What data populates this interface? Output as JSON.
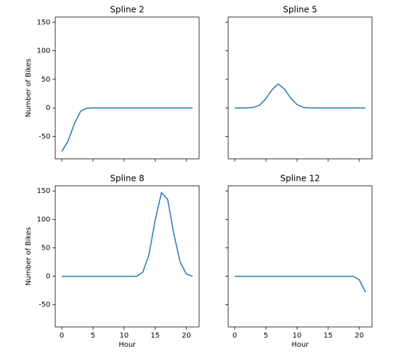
{
  "chart_data": [
    {
      "type": "line",
      "title": "Spline 2",
      "ylabel": "Number of Bikes",
      "x": [
        0,
        1,
        2,
        3,
        4,
        5,
        6,
        7,
        8,
        9,
        10,
        11,
        12,
        13,
        14,
        15,
        16,
        17,
        18,
        19,
        20,
        21
      ],
      "series": [
        {
          "color": "#1f77b4",
          "values": [
            -76,
            -58,
            -28,
            -6,
            -0.5,
            0,
            0,
            0,
            0,
            0,
            0,
            0,
            0,
            0,
            0,
            0,
            0,
            0,
            0,
            0,
            0,
            0
          ]
        }
      ],
      "xlim": [
        -1.05,
        22.05
      ],
      "ylim": [
        -89,
        159
      ],
      "xticks": [
        0,
        5,
        10,
        15,
        20
      ],
      "yticks": [
        -50,
        0,
        50,
        100,
        150
      ]
    },
    {
      "type": "line",
      "title": "Spline 5",
      "x": [
        0,
        1,
        2,
        3,
        4,
        5,
        6,
        7,
        8,
        9,
        10,
        11,
        12,
        13,
        14,
        15,
        16,
        17,
        18,
        19,
        20,
        21
      ],
      "series": [
        {
          "color": "#1f77b4",
          "values": [
            0,
            0,
            0,
            1,
            5,
            16,
            32,
            42,
            33,
            17,
            6,
            1,
            0,
            0,
            0,
            0,
            0,
            0,
            0,
            0,
            0,
            0
          ]
        }
      ],
      "xlim": [
        -1.05,
        22.05
      ],
      "ylim": [
        -89,
        159
      ],
      "xticks": [
        0,
        5,
        10,
        15,
        20
      ],
      "yticks": [
        -50,
        0,
        50,
        100,
        150
      ]
    },
    {
      "type": "line",
      "title": "Spline 8",
      "ylabel": "Number of Bikes",
      "xlabel": "Hour",
      "x": [
        0,
        1,
        2,
        3,
        4,
        5,
        6,
        7,
        8,
        9,
        10,
        11,
        12,
        13,
        14,
        15,
        16,
        17,
        18,
        19,
        20,
        21
      ],
      "series": [
        {
          "color": "#1f77b4",
          "values": [
            0,
            0,
            0,
            0,
            0,
            0,
            0,
            0,
            0,
            0,
            0,
            0,
            0,
            7,
            38,
            99,
            147,
            135,
            74,
            25,
            4,
            0
          ]
        }
      ],
      "xlim": [
        -1.05,
        22.05
      ],
      "ylim": [
        -89,
        159
      ],
      "xticks": [
        0,
        5,
        10,
        15,
        20
      ],
      "yticks": [
        -50,
        0,
        50,
        100,
        150
      ]
    },
    {
      "type": "line",
      "title": "Spline 12",
      "xlabel": "Hour",
      "x": [
        0,
        1,
        2,
        3,
        4,
        5,
        6,
        7,
        8,
        9,
        10,
        11,
        12,
        13,
        14,
        15,
        16,
        17,
        18,
        19,
        20,
        21
      ],
      "series": [
        {
          "color": "#1f77b4",
          "values": [
            0,
            0,
            0,
            0,
            0,
            0,
            0,
            0,
            0,
            0,
            0,
            0,
            0,
            0,
            0,
            0,
            0,
            0,
            0,
            0,
            -6,
            -28
          ]
        }
      ],
      "xlim": [
        -1.05,
        22.05
      ],
      "ylim": [
        -89,
        159
      ],
      "xticks": [
        0,
        5,
        10,
        15,
        20
      ],
      "yticks": [
        -50,
        0,
        50,
        100,
        150
      ]
    }
  ]
}
